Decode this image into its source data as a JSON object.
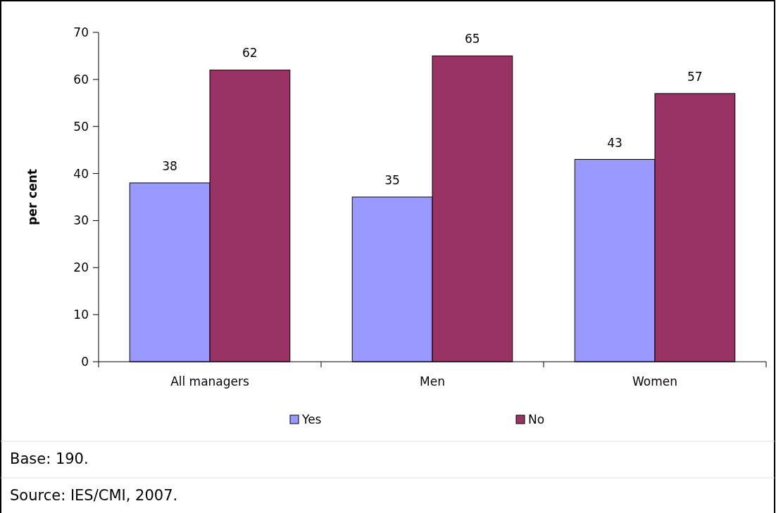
{
  "chart_data": {
    "type": "bar",
    "ylabel": "per cent",
    "categories": [
      "All managers",
      "Men",
      "Women"
    ],
    "series": [
      {
        "name": "Yes",
        "color": "#9999ff",
        "values": [
          38,
          35,
          43
        ]
      },
      {
        "name": "No",
        "color": "#993366",
        "values": [
          62,
          65,
          57
        ]
      }
    ],
    "ylim": [
      0,
      70
    ],
    "yticks": [
      0,
      10,
      20,
      30,
      40,
      50,
      60,
      70
    ],
    "grid": false,
    "legend": "bottom",
    "data_labels": true,
    "annotations": [
      "Base: 190.",
      "Source: IES/CMI, 2007."
    ]
  }
}
